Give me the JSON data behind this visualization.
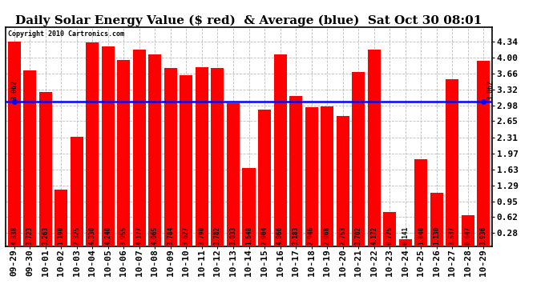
{
  "title": "Daily Solar Energy Value ($ red)  & Average (blue)  Sat Oct 30 08:01",
  "copyright": "Copyright 2010 Cartronics.com",
  "categories": [
    "09-29",
    "09-30",
    "10-01",
    "10-02",
    "10-03",
    "10-04",
    "10-05",
    "10-06",
    "10-07",
    "10-08",
    "10-09",
    "10-10",
    "10-11",
    "10-12",
    "10-13",
    "10-14",
    "10-15",
    "10-16",
    "10-17",
    "10-18",
    "10-19",
    "10-20",
    "10-21",
    "10-22",
    "10-23",
    "10-24",
    "10-25",
    "10-26",
    "10-27",
    "10-28",
    "10-29"
  ],
  "values": [
    4.338,
    3.723,
    3.263,
    1.19,
    2.325,
    4.33,
    4.24,
    3.955,
    4.177,
    4.065,
    3.784,
    3.627,
    3.79,
    3.782,
    3.033,
    1.648,
    2.904,
    4.066,
    3.183,
    2.946,
    2.968,
    2.753,
    3.702,
    4.172,
    0.725,
    0.141,
    1.84,
    1.13,
    3.537,
    0.647,
    3.936
  ],
  "average": 3.062,
  "bar_color": "#ff0000",
  "avg_line_color": "#0000ff",
  "background_color": "#ffffff",
  "plot_bg_color": "#ffffff",
  "grid_color": "#bbbbbb",
  "ylim_min": 0.0,
  "ylim_max": 4.65,
  "yticks": [
    0.28,
    0.62,
    0.95,
    1.29,
    1.63,
    1.97,
    2.31,
    2.65,
    2.98,
    3.32,
    3.66,
    4.0,
    4.34
  ],
  "avg_label": "3.062",
  "title_fontsize": 11,
  "tick_fontsize": 8,
  "bar_label_fontsize": 5.5,
  "copyright_fontsize": 6,
  "avg_label_fontsize": 6
}
